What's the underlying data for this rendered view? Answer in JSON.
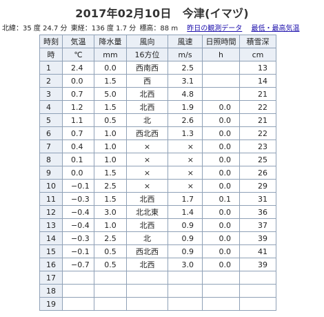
{
  "page": {
    "title": "2017年02月10日　今津(イマヅ)"
  },
  "info": {
    "latitude": "北緯：35 度 24.7 分",
    "longitude": "東経：136 度 1.7 分",
    "elevation": "標高：88 m",
    "prev_day_link": "昨日の観測データ",
    "minmax_link": "最低・最高気温"
  },
  "table": {
    "header1": [
      "時刻",
      "気温",
      "降水量",
      "風向",
      "風速",
      "日照時間",
      "積雪深"
    ],
    "header2": [
      "時",
      "℃",
      "mm",
      "16方位",
      "m/s",
      "h",
      "cm"
    ],
    "rows": [
      [
        "1",
        "2.4",
        "0.0",
        "西南西",
        "2.5",
        "",
        "13"
      ],
      [
        "2",
        "0.0",
        "1.5",
        "西",
        "3.1",
        "",
        "14"
      ],
      [
        "3",
        "0.7",
        "5.0",
        "北西",
        "4.8",
        "",
        "21"
      ],
      [
        "4",
        "1.2",
        "1.5",
        "北西",
        "1.9",
        "0.0",
        "22"
      ],
      [
        "5",
        "1.1",
        "0.5",
        "北",
        "2.6",
        "0.0",
        "21"
      ],
      [
        "6",
        "0.7",
        "1.0",
        "西北西",
        "1.3",
        "0.0",
        "22"
      ],
      [
        "7",
        "0.4",
        "1.0",
        "×",
        "×",
        "0.0",
        "23"
      ],
      [
        "8",
        "0.1",
        "1.0",
        "×",
        "×",
        "0.0",
        "25"
      ],
      [
        "9",
        "0.0",
        "1.5",
        "×",
        "×",
        "0.0",
        "26"
      ],
      [
        "10",
        "−0.1",
        "2.5",
        "×",
        "×",
        "0.0",
        "29"
      ],
      [
        "11",
        "−0.3",
        "1.5",
        "北西",
        "1.7",
        "0.1",
        "31"
      ],
      [
        "12",
        "−0.4",
        "3.0",
        "北北東",
        "1.4",
        "0.0",
        "36"
      ],
      [
        "13",
        "−0.4",
        "1.0",
        "北西",
        "0.9",
        "0.0",
        "37"
      ],
      [
        "14",
        "−0.3",
        "2.5",
        "北",
        "0.9",
        "0.0",
        "39"
      ],
      [
        "15",
        "−0.1",
        "0.5",
        "西北西",
        "0.9",
        "0.0",
        "41"
      ],
      [
        "16",
        "−0.7",
        "0.5",
        "北西",
        "3.0",
        "0.0",
        "39"
      ],
      [
        "17",
        "",
        "",
        "",
        "",
        "",
        ""
      ],
      [
        "18",
        "",
        "",
        "",
        "",
        "",
        ""
      ],
      [
        "19",
        "",
        "",
        "",
        "",
        "",
        ""
      ]
    ]
  }
}
